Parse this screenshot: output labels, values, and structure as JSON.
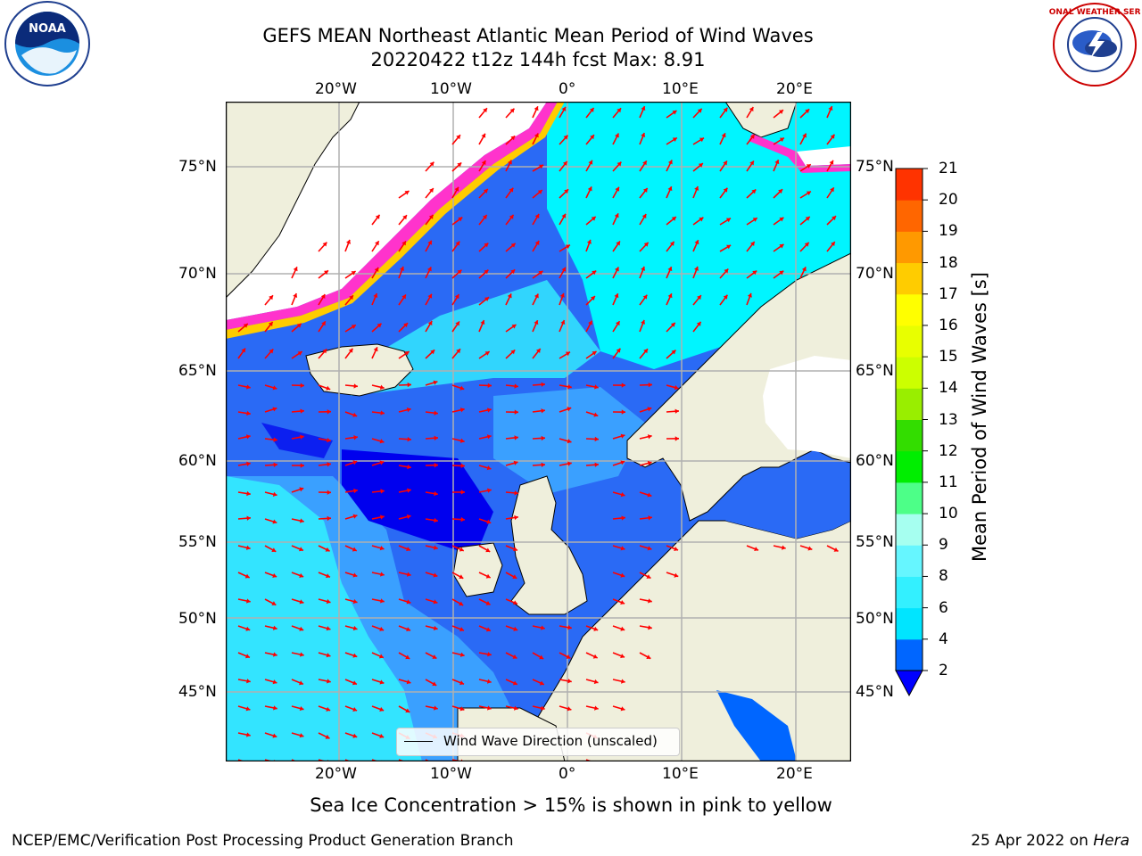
{
  "title_line1": "GEFS MEAN Northeast Atlantic Mean Period of Wind Waves",
  "title_line2": "20220422 t12z 144h fcst   Max: 8.91",
  "axes": {
    "lon_ticks": [
      "20°W",
      "10°W",
      "0°",
      "10°E",
      "20°E"
    ],
    "lat_ticks": [
      "75°N",
      "70°N",
      "65°N",
      "60°N",
      "55°N",
      "50°N",
      "45°N"
    ]
  },
  "legend": {
    "label": "Wind Wave Direction (unscaled)"
  },
  "colorbar": {
    "label": "Mean Period of Wind Waves [s]",
    "ticks": [
      "2",
      "4",
      "6",
      "8",
      "9",
      "10",
      "11",
      "12",
      "13",
      "14",
      "15",
      "16",
      "17",
      "18",
      "19",
      "20",
      "21"
    ],
    "colors": [
      "#0066ff",
      "#00e5ff",
      "#33f0ff",
      "#66f6ff",
      "#a6fff0",
      "#4dff88",
      "#00ee00",
      "#33dd00",
      "#99ee00",
      "#ccff00",
      "#e8ff00",
      "#ffff00",
      "#ffcc00",
      "#ff9900",
      "#ff6600",
      "#ff3300",
      "#ff0000"
    ],
    "extend_color": "#0000ff"
  },
  "colors": {
    "land": "#efefdc",
    "ice_free": "#ffffff",
    "sea_dark": "#0000ee",
    "sea_mid": "#2a6af5",
    "sea_light": "#3aa0ff",
    "sea_cyan": "#00f5ff",
    "arrow": "#ff0000",
    "grid": "#b0b0b0",
    "ice_edge": "#ff33cc"
  },
  "caption": "Sea Ice Concentration > 15% is shown in pink to yellow",
  "footer_left": "NCEP/EMC/Verification Post Processing Product Generation Branch",
  "footer_date": "25 Apr 2022 on",
  "footer_host": "Hera",
  "logos": {
    "left": "NOAA",
    "right": "NATIONAL WEATHER SERVICE"
  }
}
